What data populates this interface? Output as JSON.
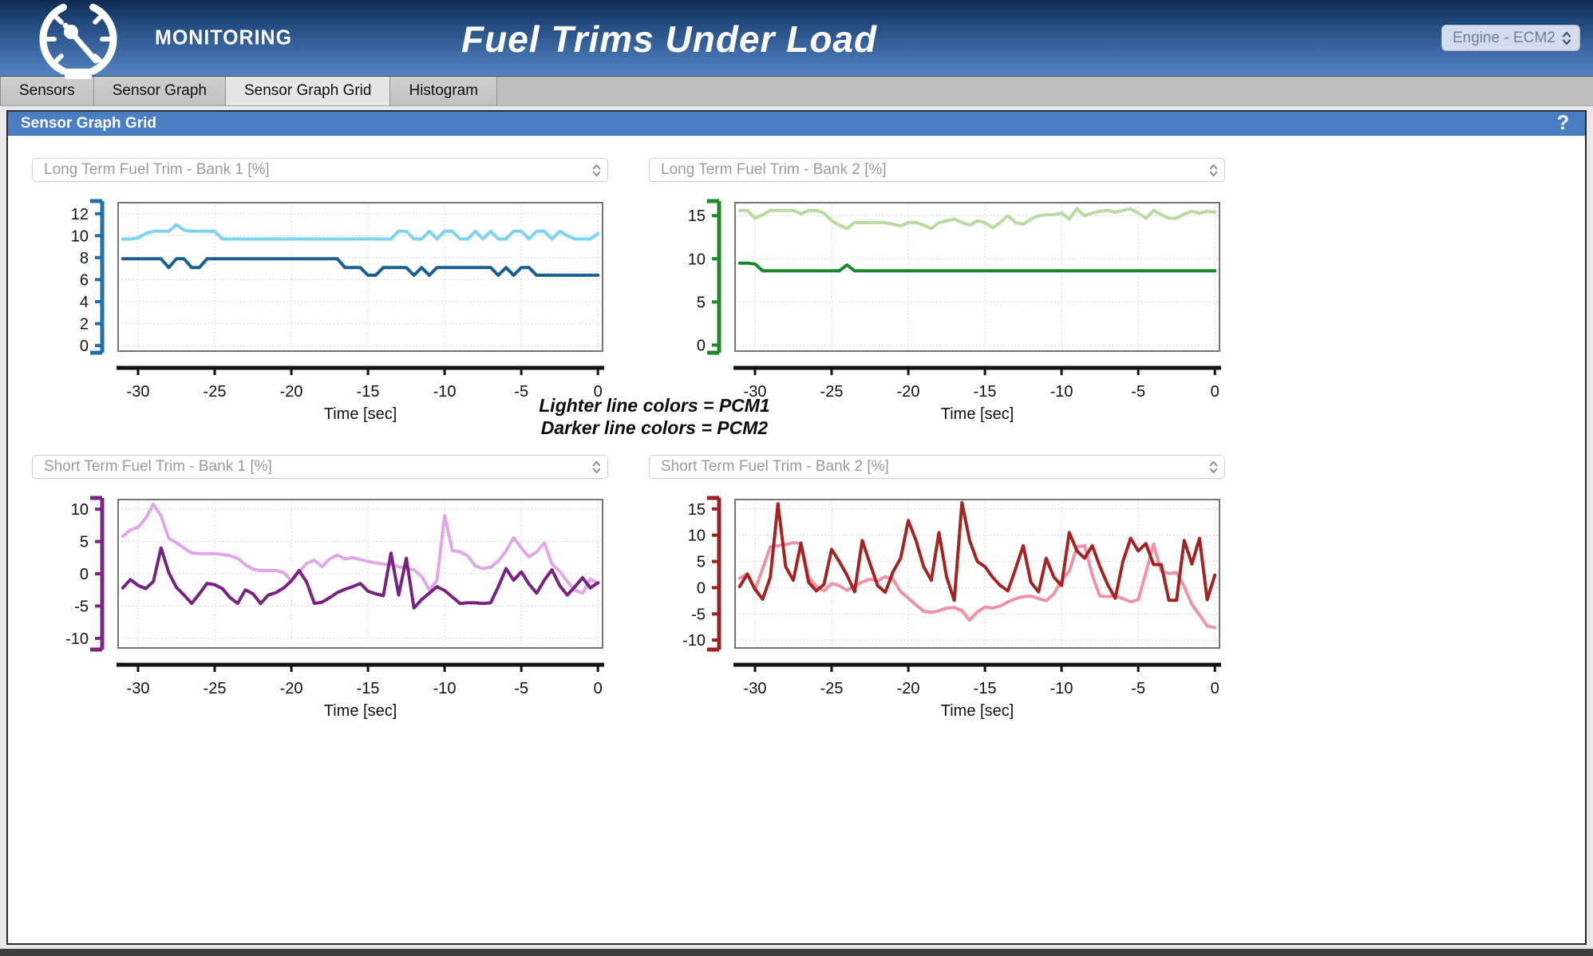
{
  "header": {
    "brand": "MONITORING",
    "title": "Fuel Trims Under Load",
    "device_select": "Engine - ECM2"
  },
  "tabs": [
    {
      "label": "Sensors",
      "active": false
    },
    {
      "label": "Sensor Graph",
      "active": false
    },
    {
      "label": "Sensor Graph Grid",
      "active": true
    },
    {
      "label": "Histogram",
      "active": false
    }
  ],
  "panel": {
    "title": "Sensor Graph Grid",
    "help": "?"
  },
  "annotation": {
    "line1": "Lighter line colors = PCM1",
    "line2": "Darker line colors = PCM2"
  },
  "chart_data": [
    {
      "type": "line",
      "selector_label": "Long Term Fuel Trim - Bank 1 [%]",
      "xlabel": "Time [sec]",
      "x_ticks": [
        -30,
        -25,
        -20,
        -15,
        -10,
        -5,
        0
      ],
      "xlim": [
        -31.3,
        0.3
      ],
      "ylim": [
        -0.5,
        13
      ],
      "y_ticks": [
        0,
        2,
        4,
        6,
        8,
        10,
        12
      ],
      "axis_color": "#1e6fb0",
      "grid": true,
      "x_start": -31,
      "x_step": 0.5,
      "series": [
        {
          "name": "PCM1",
          "color": "#7ed2ef",
          "values": [
            9.7,
            9.7,
            9.8,
            10.2,
            10.4,
            10.4,
            10.4,
            11.0,
            10.5,
            10.4,
            10.4,
            10.4,
            10.4,
            9.7,
            9.7,
            9.7,
            9.7,
            9.7,
            9.7,
            9.7,
            9.7,
            9.7,
            9.7,
            9.7,
            9.7,
            9.7,
            9.7,
            9.7,
            9.7,
            9.7,
            9.7,
            9.7,
            9.7,
            9.7,
            9.7,
            9.7,
            10.4,
            10.4,
            9.7,
            9.7,
            10.4,
            9.7,
            10.4,
            10.4,
            9.7,
            9.7,
            10.4,
            9.7,
            10.4,
            9.7,
            9.7,
            10.4,
            10.4,
            9.7,
            10.4,
            10.4,
            9.7,
            10.4,
            10.0,
            9.7,
            9.7,
            9.7,
            10.2
          ]
        },
        {
          "name": "PCM2",
          "color": "#1a5f8e",
          "values": [
            7.9,
            7.9,
            7.9,
            7.9,
            7.9,
            7.9,
            7.1,
            7.9,
            7.9,
            7.1,
            7.1,
            7.9,
            7.9,
            7.9,
            7.9,
            7.9,
            7.9,
            7.9,
            7.9,
            7.9,
            7.9,
            7.9,
            7.9,
            7.9,
            7.9,
            7.9,
            7.9,
            7.9,
            7.9,
            7.1,
            7.1,
            7.1,
            6.4,
            6.4,
            7.1,
            7.1,
            7.1,
            7.1,
            6.4,
            7.1,
            6.4,
            7.1,
            7.1,
            7.1,
            7.1,
            7.1,
            7.1,
            7.1,
            7.1,
            6.4,
            7.1,
            6.4,
            7.1,
            7.1,
            6.4,
            6.4,
            6.4,
            6.4,
            6.4,
            6.4,
            6.4,
            6.4,
            6.4
          ]
        }
      ]
    },
    {
      "type": "line",
      "selector_label": "Long Term Fuel Trim - Bank 2 [%]",
      "xlabel": "Time [sec]",
      "x_ticks": [
        -30,
        -25,
        -20,
        -15,
        -10,
        -5,
        0
      ],
      "xlim": [
        -31.3,
        0.3
      ],
      "ylim": [
        -0.7,
        16.5
      ],
      "y_ticks": [
        0,
        5,
        10,
        15
      ],
      "axis_color": "#1d8a27",
      "grid": true,
      "x_start": -31,
      "x_step": 0.5,
      "series": [
        {
          "name": "PCM1",
          "color": "#b8dba2",
          "values": [
            15.6,
            15.6,
            14.7,
            15.1,
            15.6,
            15.6,
            15.6,
            15.6,
            15.2,
            15.6,
            15.6,
            15.3,
            14.4,
            13.9,
            13.5,
            14.2,
            14.2,
            14.2,
            14.2,
            14.2,
            14.0,
            13.8,
            14.2,
            14.2,
            13.9,
            13.5,
            14.2,
            14.4,
            14.6,
            14.2,
            13.9,
            14.4,
            14.2,
            13.6,
            14.2,
            15.0,
            14.2,
            14.0,
            14.6,
            15.0,
            15.1,
            15.1,
            15.3,
            14.6,
            15.8,
            15.0,
            15.3,
            15.5,
            15.6,
            15.4,
            15.6,
            15.8,
            15.3,
            14.7,
            15.6,
            15.1,
            14.7,
            14.7,
            15.2,
            15.5,
            15.3,
            15.5,
            15.4
          ]
        },
        {
          "name": "PCM2",
          "color": "#17882a",
          "values": [
            9.5,
            9.5,
            9.4,
            8.6,
            8.6,
            8.6,
            8.6,
            8.6,
            8.6,
            8.6,
            8.6,
            8.6,
            8.6,
            8.6,
            9.3,
            8.6,
            8.6,
            8.6,
            8.6,
            8.6,
            8.6,
            8.6,
            8.6,
            8.6,
            8.6,
            8.6,
            8.6,
            8.6,
            8.6,
            8.6,
            8.6,
            8.6,
            8.6,
            8.6,
            8.6,
            8.6,
            8.6,
            8.6,
            8.6,
            8.6,
            8.6,
            8.6,
            8.6,
            8.6,
            8.6,
            8.6,
            8.6,
            8.6,
            8.6,
            8.6,
            8.6,
            8.6,
            8.6,
            8.6,
            8.6,
            8.6,
            8.6,
            8.6,
            8.6,
            8.6,
            8.6,
            8.6,
            8.6
          ]
        }
      ]
    },
    {
      "type": "line",
      "selector_label": "Short Term Fuel Trim - Bank 1 [%]",
      "xlabel": "Time [sec]",
      "x_ticks": [
        -30,
        -25,
        -20,
        -15,
        -10,
        -5,
        0
      ],
      "xlim": [
        -31.3,
        0.3
      ],
      "ylim": [
        -11.5,
        11.5
      ],
      "y_ticks": [
        -10,
        -5,
        0,
        5,
        10
      ],
      "axis_color": "#7c2583",
      "grid": true,
      "x_start": -31,
      "x_step": 0.5,
      "series": [
        {
          "name": "PCM1",
          "color": "#dfa6e8",
          "values": [
            5.8,
            6.8,
            7.2,
            8.6,
            10.8,
            9.0,
            5.5,
            4.8,
            4.0,
            3.2,
            3.1,
            3.1,
            3.1,
            3.0,
            2.8,
            2.4,
            1.4,
            0.7,
            0.5,
            0.5,
            0.5,
            0.2,
            -1.1,
            0.3,
            1.6,
            2.1,
            1.1,
            2.3,
            2.9,
            2.3,
            2.5,
            2.2,
            1.9,
            1.7,
            1.5,
            1.4,
            1.1,
            0.8,
            0.6,
            -0.4,
            -2.5,
            -1.0,
            9.0,
            3.6,
            3.4,
            2.8,
            1.2,
            0.8,
            1.0,
            2.0,
            3.5,
            5.6,
            4.0,
            2.6,
            3.4,
            4.8,
            1.5,
            0.4,
            -1.2,
            -2.6,
            -3.0,
            -0.8,
            -1.5
          ]
        },
        {
          "name": "PCM2",
          "color": "#772280",
          "values": [
            -2.2,
            -0.9,
            -1.8,
            -2.3,
            -1.2,
            4.0,
            0.2,
            -2.1,
            -3.3,
            -4.6,
            -3.1,
            -1.5,
            -1.7,
            -2.3,
            -3.7,
            -4.6,
            -2.5,
            -3.1,
            -4.6,
            -3.3,
            -2.9,
            -2.2,
            -1.1,
            0.5,
            -1.3,
            -4.6,
            -4.4,
            -3.7,
            -2.9,
            -2.4,
            -2.0,
            -1.5,
            -2.7,
            -3.1,
            -3.4,
            3.2,
            -3.3,
            2.4,
            -5.3,
            -4.0,
            -3.0,
            -2.0,
            -2.6,
            -3.6,
            -4.6,
            -4.5,
            -4.5,
            -4.6,
            -4.5,
            -2.0,
            0.8,
            -1.0,
            0.3,
            -1.6,
            -3.0,
            -1.0,
            0.6,
            -1.8,
            -3.3,
            -2.0,
            -0.6,
            -2.2,
            -1.4
          ]
        }
      ]
    },
    {
      "type": "line",
      "selector_label": "Short Term Fuel Trim - Bank 2 [%]",
      "xlabel": "Time [sec]",
      "x_ticks": [
        -30,
        -25,
        -20,
        -15,
        -10,
        -5,
        0
      ],
      "xlim": [
        -31.3,
        0.3
      ],
      "ylim": [
        -11.5,
        16.8
      ],
      "y_ticks": [
        -10,
        -5,
        0,
        5,
        10,
        15
      ],
      "axis_color": "#a02020",
      "grid": true,
      "x_start": -31,
      "x_step": 0.5,
      "series": [
        {
          "name": "PCM1",
          "color": "#ee92aa",
          "values": [
            1.8,
            2.6,
            -0.4,
            3.6,
            7.8,
            8.0,
            8.2,
            8.6,
            8.4,
            2.0,
            0.3,
            -0.6,
            0.8,
            0.4,
            -0.5,
            0.3,
            1.1,
            1.6,
            1.3,
            2.1,
            1.6,
            -0.8,
            -2.0,
            -3.3,
            -4.5,
            -4.7,
            -4.4,
            -3.9,
            -3.8,
            -4.4,
            -6.2,
            -4.6,
            -3.7,
            -3.9,
            -3.5,
            -2.7,
            -2.1,
            -1.7,
            -1.6,
            -2.1,
            -2.5,
            -1.2,
            1.4,
            3.1,
            7.8,
            8.0,
            2.4,
            -1.6,
            -1.7,
            -1.6,
            -2.1,
            -2.7,
            -2.3,
            2.9,
            8.3,
            3.1,
            2.7,
            2.9,
            0.2,
            -3.2,
            -5.2,
            -7.3,
            -7.6
          ]
        },
        {
          "name": "PCM2",
          "color": "#a32322",
          "values": [
            0.2,
            2.6,
            -0.3,
            -2.2,
            2.0,
            16.0,
            4.0,
            1.4,
            8.5,
            1.0,
            -0.6,
            0.6,
            7.3,
            5.0,
            2.4,
            -0.8,
            9.0,
            4.6,
            0.4,
            -0.9,
            3.0,
            5.6,
            12.8,
            9.0,
            4.0,
            1.4,
            10.5,
            2.0,
            -2.4,
            16.2,
            9.0,
            5.0,
            4.0,
            2.0,
            0.4,
            -0.6,
            3.6,
            8.0,
            1.0,
            -0.8,
            5.6,
            2.0,
            0.4,
            10.5,
            7.0,
            5.6,
            8.0,
            4.0,
            0.6,
            -2.0,
            5.0,
            9.4,
            7.0,
            8.4,
            4.4,
            4.4,
            -2.4,
            -2.4,
            9.0,
            4.5,
            9.4,
            -2.3,
            2.4
          ]
        }
      ]
    }
  ]
}
